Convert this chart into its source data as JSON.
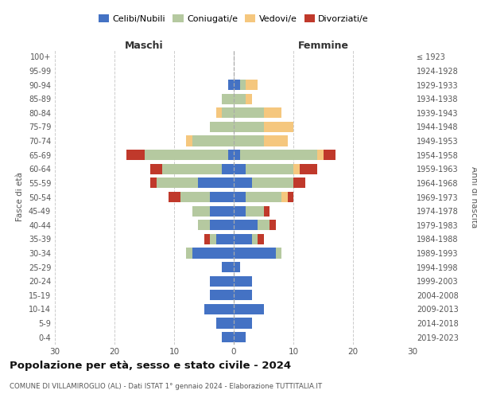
{
  "age_groups": [
    "0-4",
    "5-9",
    "10-14",
    "15-19",
    "20-24",
    "25-29",
    "30-34",
    "35-39",
    "40-44",
    "45-49",
    "50-54",
    "55-59",
    "60-64",
    "65-69",
    "70-74",
    "75-79",
    "80-84",
    "85-89",
    "90-94",
    "95-99",
    "100+"
  ],
  "birth_years": [
    "2019-2023",
    "2014-2018",
    "2009-2013",
    "2004-2008",
    "1999-2003",
    "1994-1998",
    "1989-1993",
    "1984-1988",
    "1979-1983",
    "1974-1978",
    "1969-1973",
    "1964-1968",
    "1959-1963",
    "1954-1958",
    "1949-1953",
    "1944-1948",
    "1939-1943",
    "1934-1938",
    "1929-1933",
    "1924-1928",
    "≤ 1923"
  ],
  "male_celibi": [
    2,
    3,
    5,
    4,
    4,
    2,
    7,
    3,
    4,
    4,
    4,
    6,
    2,
    1,
    0,
    0,
    0,
    0,
    1,
    0,
    0
  ],
  "male_coniugati": [
    0,
    0,
    0,
    0,
    0,
    0,
    1,
    1,
    2,
    3,
    5,
    7,
    10,
    14,
    7,
    4,
    2,
    2,
    0,
    0,
    0
  ],
  "male_vedovi": [
    0,
    0,
    0,
    0,
    0,
    0,
    0,
    0,
    0,
    0,
    0,
    0,
    0,
    0,
    1,
    0,
    1,
    0,
    0,
    0,
    0
  ],
  "male_divorziati": [
    0,
    0,
    0,
    0,
    0,
    0,
    0,
    1,
    0,
    0,
    2,
    1,
    2,
    3,
    0,
    0,
    0,
    0,
    0,
    0,
    0
  ],
  "female_celibi": [
    2,
    3,
    5,
    3,
    3,
    1,
    7,
    3,
    4,
    2,
    2,
    3,
    2,
    1,
    0,
    0,
    0,
    0,
    1,
    0,
    0
  ],
  "female_coniugati": [
    0,
    0,
    0,
    0,
    0,
    0,
    1,
    1,
    2,
    3,
    6,
    7,
    8,
    13,
    5,
    5,
    5,
    2,
    1,
    0,
    0
  ],
  "female_vedovi": [
    0,
    0,
    0,
    0,
    0,
    0,
    0,
    0,
    0,
    0,
    1,
    0,
    1,
    1,
    4,
    5,
    3,
    1,
    2,
    0,
    0
  ],
  "female_divorziati": [
    0,
    0,
    0,
    0,
    0,
    0,
    0,
    1,
    1,
    1,
    1,
    2,
    3,
    2,
    0,
    0,
    0,
    0,
    0,
    0,
    0
  ],
  "colors": {
    "celibi": "#4472c4",
    "coniugati": "#b5c9a0",
    "vedovi": "#f5c77e",
    "divorziati": "#c0392b"
  },
  "xlim": 30,
  "title": "Popolazione per età, sesso e stato civile - 2024",
  "subtitle": "COMUNE DI VILLAMIROGLIO (AL) - Dati ISTAT 1° gennaio 2024 - Elaborazione TUTTITALIA.IT",
  "ylabel_left": "Fasce di età",
  "ylabel_right": "Anni di nascita",
  "xlabel_male": "Maschi",
  "xlabel_female": "Femmine",
  "bg_color": "#ffffff",
  "grid_color": "#cccccc"
}
